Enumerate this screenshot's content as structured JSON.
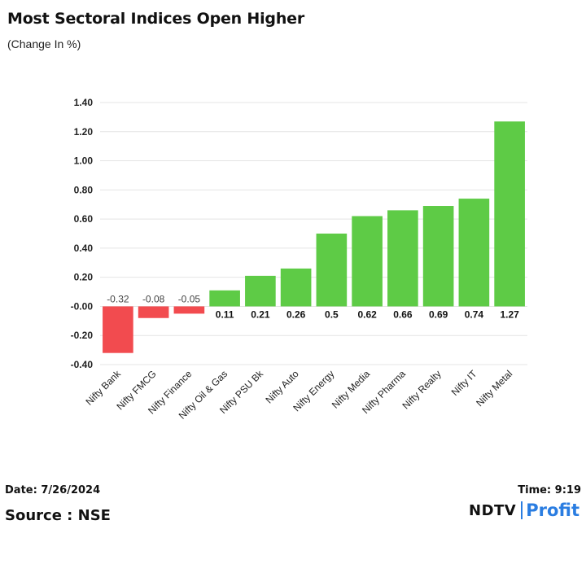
{
  "header": {
    "title": "Most Sectoral Indices Open Higher",
    "subtitle": "(Change In %)"
  },
  "footer": {
    "date": "Date: 7/26/2024",
    "source": "Source : NSE",
    "time": "Time: 9:19",
    "logo_left": "NDTV",
    "logo_right": "Profit"
  },
  "colors": {
    "positive": "#5ecb46",
    "negative": "#f24b4f",
    "grid": "#e4e4e4"
  },
  "chart_data": {
    "type": "bar",
    "title": "Most Sectoral Indices Open Higher",
    "ylabel": "(Change In %)",
    "xlabel": "",
    "ylim": [
      -0.4,
      1.4
    ],
    "yticks": [
      1.4,
      1.2,
      1.0,
      0.8,
      0.6,
      0.4,
      0.2,
      0.0,
      -0.2,
      -0.4
    ],
    "ytick_labels": [
      "1.40",
      "1.20",
      "1.00",
      "0.80",
      "0.60",
      "0.40",
      "0.20",
      "-0.00",
      "-0.20",
      "-0.40"
    ],
    "grid": true,
    "categories": [
      "Nifty Bank",
      "Nifty FMCG",
      "Nifty Finance",
      "Nifty Oil & Gas",
      "Nifty PSU Bk",
      "Nifty Auto",
      "Nifty Energy",
      "Nifty Media",
      "Nifty Pharma",
      "Nifty Realty",
      "Nifty IT",
      "Nifty Metal"
    ],
    "values": [
      -0.32,
      -0.08,
      -0.05,
      0.11,
      0.21,
      0.26,
      0.5,
      0.62,
      0.66,
      0.69,
      0.74,
      1.27
    ],
    "value_labels": [
      "-0.32",
      "-0.08",
      "-0.05",
      "0.11",
      "0.21",
      "0.26",
      "0.5",
      "0.62",
      "0.66",
      "0.69",
      "0.74",
      "1.27"
    ]
  }
}
